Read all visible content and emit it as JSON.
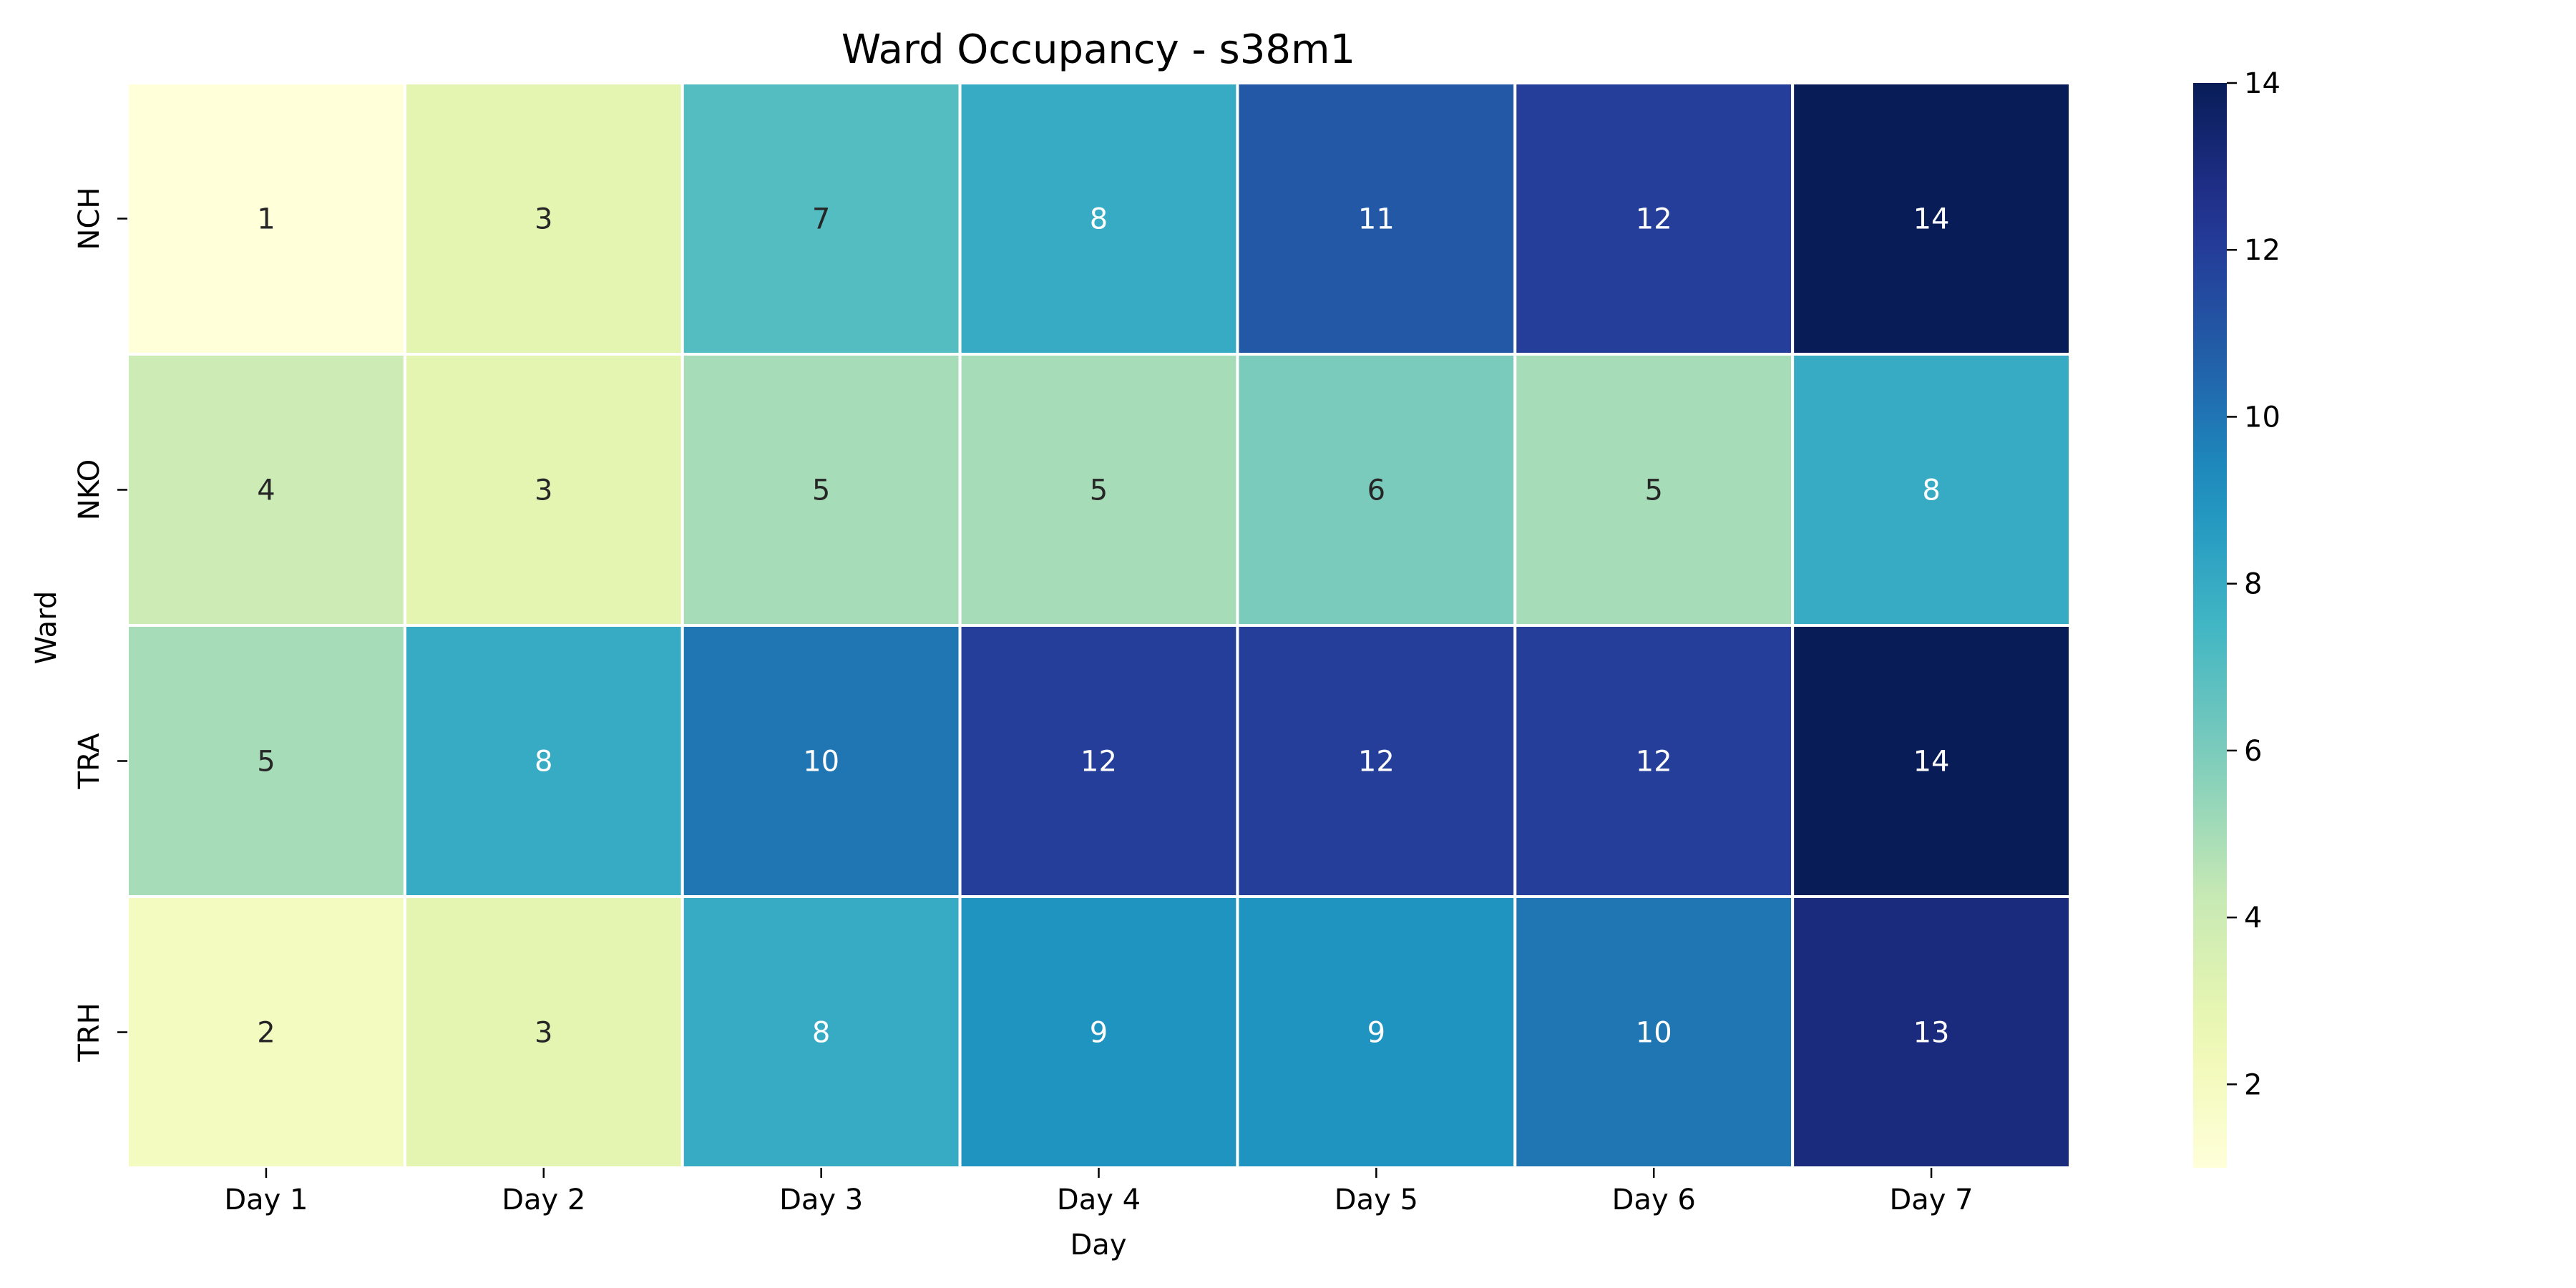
{
  "chart_data": {
    "type": "heatmap",
    "title": "Ward Occupancy - s38m1",
    "xlabel": "Day",
    "ylabel": "Ward",
    "x_categories": [
      "Day 1",
      "Day 2",
      "Day 3",
      "Day 4",
      "Day 5",
      "Day 6",
      "Day 7"
    ],
    "y_categories": [
      "NCH",
      "NKO",
      "TRA",
      "TRH"
    ],
    "values": [
      [
        1,
        3,
        7,
        8,
        11,
        12,
        14
      ],
      [
        4,
        3,
        5,
        5,
        6,
        5,
        8
      ],
      [
        5,
        8,
        10,
        12,
        12,
        12,
        14
      ],
      [
        2,
        3,
        8,
        9,
        9,
        10,
        13
      ]
    ],
    "colormap": "YlGnBu",
    "colorbar": {
      "min": 1,
      "max": 14,
      "ticks": [
        2,
        4,
        6,
        8,
        10,
        12,
        14
      ]
    },
    "annotations": true,
    "cell_border_color": "#ffffff"
  }
}
